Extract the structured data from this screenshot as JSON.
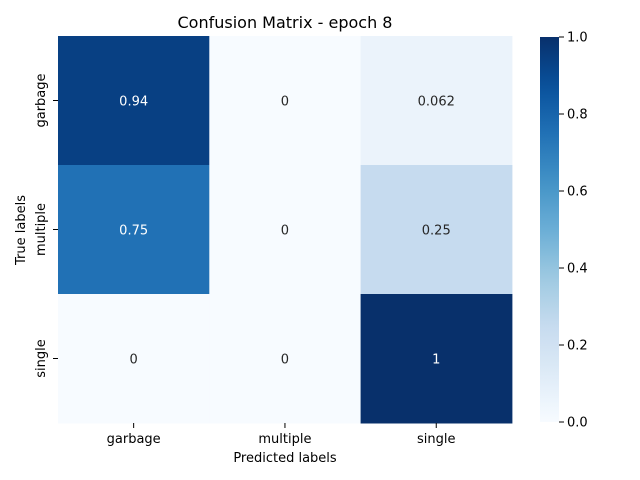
{
  "chart_data": {
    "type": "heatmap",
    "title": "Confusion Matrix - epoch 8",
    "xlabel": "Predicted labels",
    "ylabel": "True labels",
    "x_categories": [
      "garbage",
      "multiple",
      "single"
    ],
    "y_categories": [
      "garbage",
      "multiple",
      "single"
    ],
    "values": [
      [
        0.94,
        0,
        0.062
      ],
      [
        0.75,
        0,
        0.25
      ],
      [
        0,
        0,
        1
      ]
    ],
    "annotations": [
      [
        "0.94",
        "0",
        "0.062"
      ],
      [
        "0.75",
        "0",
        "0.25"
      ],
      [
        "0",
        "0",
        "1"
      ]
    ],
    "vmin": 0,
    "vmax": 1,
    "colormap": "Blues",
    "colorbar_ticks": [
      "0.0",
      "0.2",
      "0.4",
      "0.6",
      "0.8",
      "1.0"
    ],
    "colorbar_values": [
      0,
      0.2,
      0.4,
      0.6,
      0.8,
      1.0
    ]
  }
}
